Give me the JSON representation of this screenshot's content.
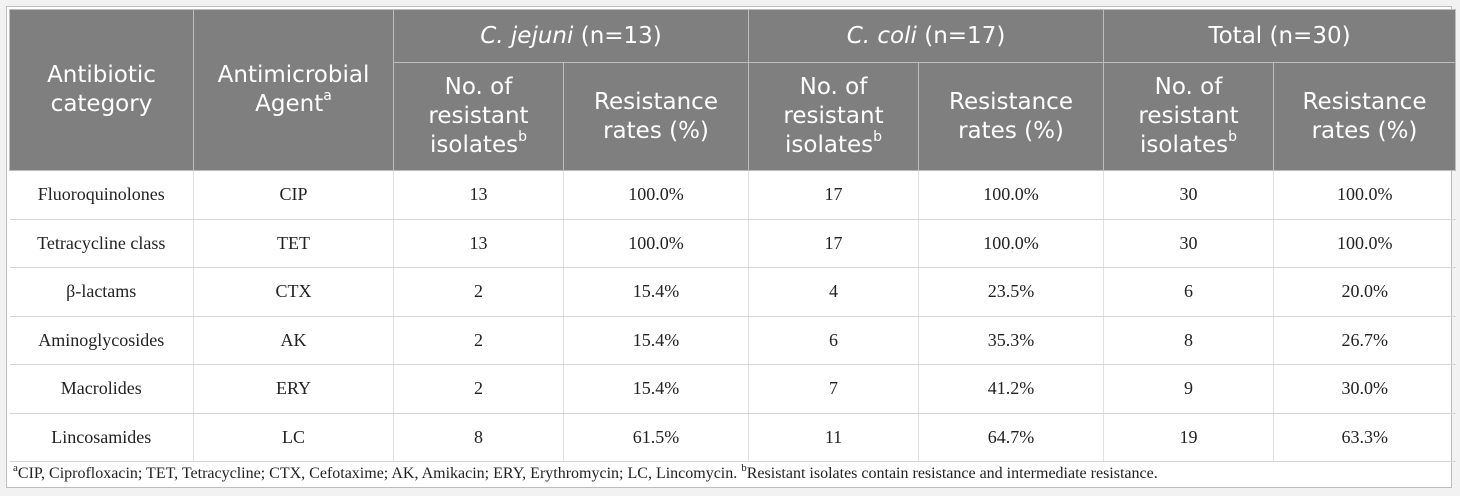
{
  "header": {
    "category": "Antibiotic category",
    "agent": "Antimicrobial Agent",
    "agent_sup": "a",
    "groups": [
      {
        "italic": "C. jejuni",
        "rest": " (n=13)"
      },
      {
        "italic": "C. coli",
        "rest": " (n=17)"
      },
      {
        "italic": "",
        "rest": "Total (n=30)"
      }
    ],
    "sub_count": "No. of resistant isolates",
    "sub_count_sup": "b",
    "sub_rate": "Resistance rates (%)"
  },
  "rows": [
    {
      "category": "Fluoroquinolones",
      "agent": "CIP",
      "values": [
        "13",
        "100.0%",
        "17",
        "100.0%",
        "30",
        "100.0%"
      ]
    },
    {
      "category": "Tetracycline class",
      "agent": "TET",
      "values": [
        "13",
        "100.0%",
        "17",
        "100.0%",
        "30",
        "100.0%"
      ]
    },
    {
      "category": "β-lactams",
      "agent": "CTX",
      "values": [
        "2",
        "15.4%",
        "4",
        "23.5%",
        "6",
        "20.0%"
      ]
    },
    {
      "category": "Aminoglycosides",
      "agent": "AK",
      "values": [
        "2",
        "15.4%",
        "6",
        "35.3%",
        "8",
        "26.7%"
      ]
    },
    {
      "category": "Macrolides",
      "agent": "ERY",
      "values": [
        "2",
        "15.4%",
        "7",
        "41.2%",
        "9",
        "30.0%"
      ]
    },
    {
      "category": "Lincosamides",
      "agent": "LC",
      "values": [
        "8",
        "61.5%",
        "11",
        "64.7%",
        "19",
        "63.3%"
      ]
    }
  ],
  "footnote": {
    "a_mark": "a",
    "a_text": "CIP, Ciprofloxacin; TET, Tetracycline; CTX, Cefotaxime; AK, Amikacin; ERY, Erythromycin; LC, Lincomycin. ",
    "b_mark": "b",
    "b_text": "Resistant isolates contain resistance and intermediate resistance."
  }
}
